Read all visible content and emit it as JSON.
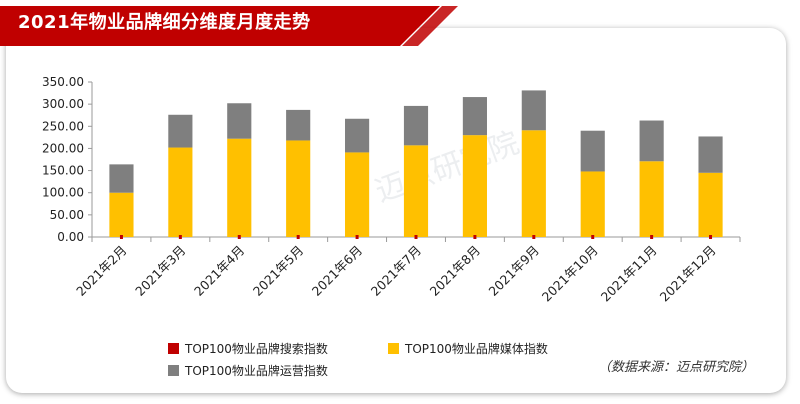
{
  "title": "2021年物业品牌细分维度月度走势",
  "source": "（数据来源：迈点研究院）",
  "watermark": "迈点研究院",
  "colors": {
    "banner": "#C00000",
    "search": "#C00000",
    "media": "#FFC000",
    "operation": "#7F7F7F"
  },
  "chart_data": {
    "type": "bar",
    "stacked": true,
    "categories": [
      "2021年2月",
      "2021年3月",
      "2021年4月",
      "2021年5月",
      "2021年6月",
      "2021年7月",
      "2021年8月",
      "2021年9月",
      "2021年10月",
      "2021年11月",
      "2021年12月"
    ],
    "series": [
      {
        "name": "TOP100物业品牌搜索指数",
        "values": [
          0,
          0,
          0,
          0,
          0,
          0,
          0,
          0,
          0,
          0,
          0
        ]
      },
      {
        "name": "TOP100物业品牌媒体指数",
        "values": [
          100,
          202,
          222,
          218,
          191,
          207,
          230,
          241,
          148,
          171,
          145
        ]
      },
      {
        "name": "TOP100物业品牌运营指数",
        "values": [
          64,
          74,
          80,
          69,
          76,
          89,
          86,
          90,
          92,
          92,
          82
        ]
      }
    ],
    "yticks": [
      "0.00",
      "50.00",
      "100.00",
      "150.00",
      "200.00",
      "250.00",
      "300.00",
      "350.00"
    ],
    "ylim": [
      0,
      350
    ],
    "legend_position": "bottom",
    "grid": false
  }
}
